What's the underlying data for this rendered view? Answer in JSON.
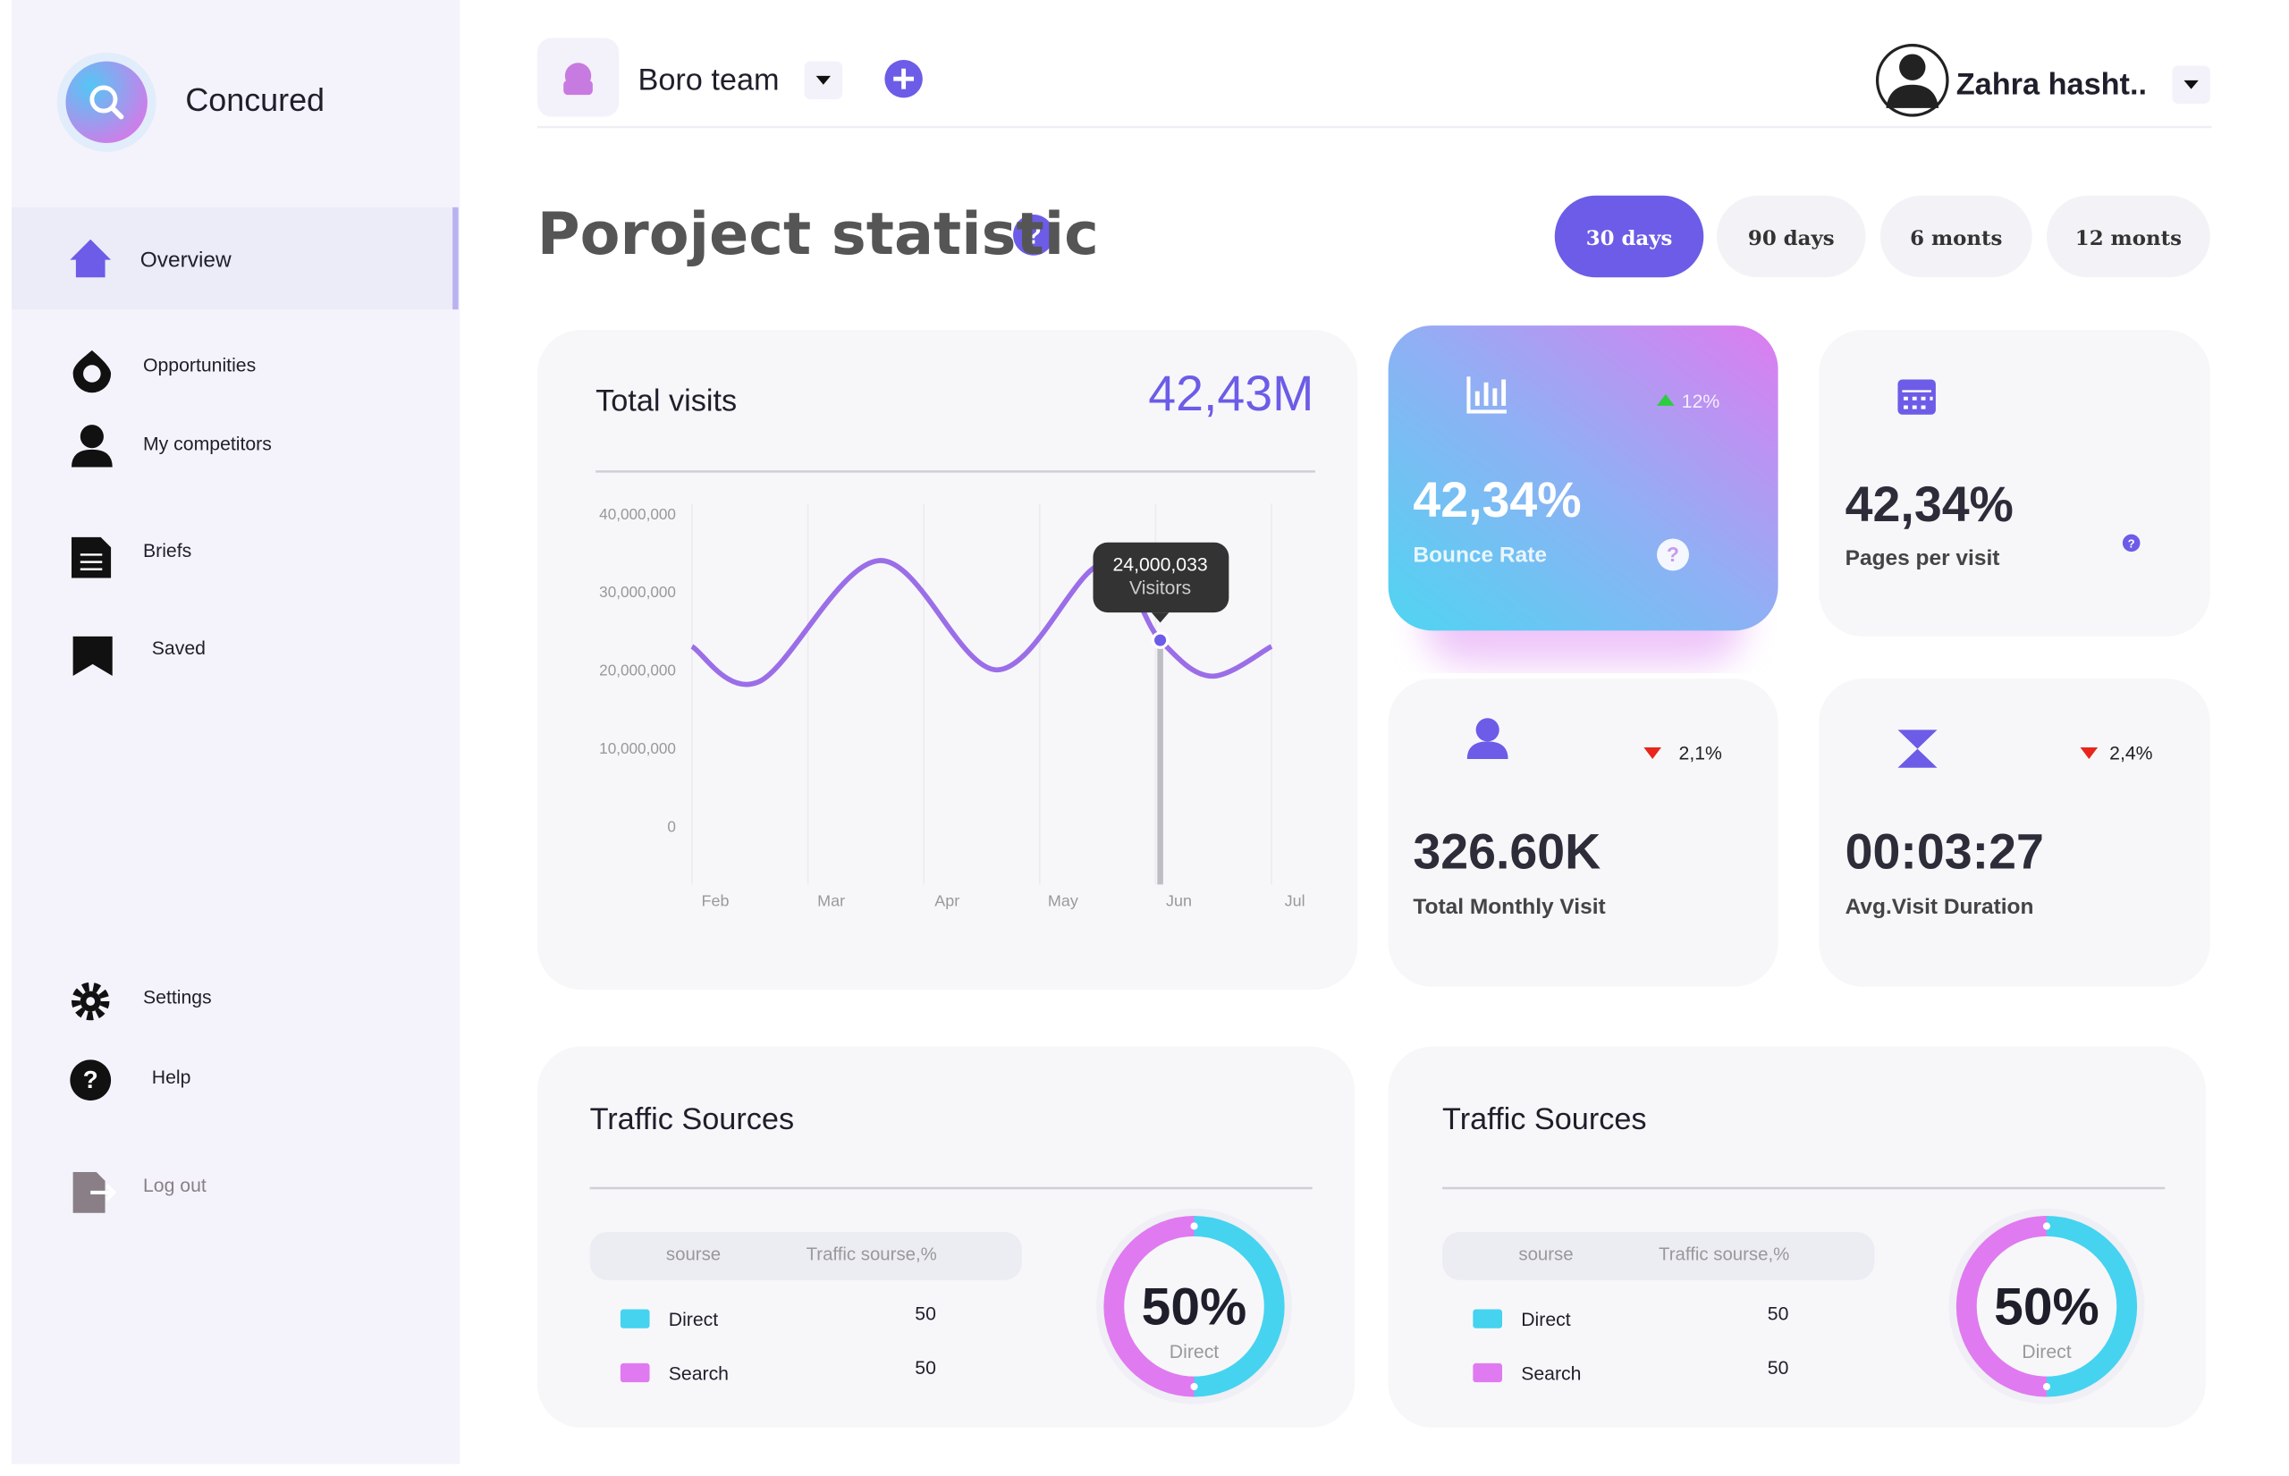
{
  "sidebar": {
    "brand": "Concured",
    "nav": [
      "Overview",
      "Opportunities",
      "My competitors",
      "Briefs",
      "Saved"
    ],
    "bottom_nav": [
      "Settings",
      "Help",
      "Log out"
    ]
  },
  "header": {
    "team": "Boro team",
    "user": "Zahra hasht.."
  },
  "page_title": "Poroject statistic",
  "periods": [
    "30 days",
    "90 days",
    "6 monts",
    "12 monts"
  ],
  "total_visits": {
    "title": "Total visits",
    "total": "42,43M",
    "chart": {
      "type": "line",
      "color": "#9b6ee8",
      "x": [
        0,
        0.58,
        1.62,
        2.63,
        3.54,
        4.04,
        4.48,
        5
      ],
      "values": [
        23200000,
        18700000,
        34200000,
        20200000,
        33800000,
        24000033,
        19400000,
        23200000
      ],
      "xlim": [
        0,
        5
      ],
      "xticks": [
        {
          "value": 0,
          "label": "Feb"
        },
        {
          "value": 1,
          "label": "Mar"
        },
        {
          "value": 2,
          "label": "Apr"
        },
        {
          "value": 3,
          "label": "May"
        },
        {
          "value": 4,
          "label": "Jun"
        },
        {
          "value": 5,
          "label": "Jul"
        }
      ],
      "ylim": [
        0,
        40000000
      ],
      "yticks": [
        0,
        {
          "value": 10000000,
          "label": "10,000,000"
        },
        {
          "value": 20000000,
          "label": "20,000,000"
        },
        {
          "value": 30000000,
          "label": "30,000,000"
        },
        {
          "value": 40000000,
          "label": "40,000,000"
        }
      ],
      "tooltip": {
        "value": "24,000,033",
        "label": "Visitors"
      }
    }
  },
  "stats": [
    {
      "value": "42,34%",
      "label": "Bounce Rate",
      "change": "12%"
    },
    {
      "value": "42,34%",
      "label": "Pages per visit"
    },
    {
      "value": "326.60K",
      "label": "Total Monthly Visit",
      "change": "2,1%"
    },
    {
      "value": "00:03:27",
      "label": "Avg.Visit Duration",
      "change": "2,4%"
    }
  ],
  "traffic_sources": [
    {
      "title": "Traffic Sources",
      "columns": [
        "sourse",
        "Traffic sourse,%"
      ],
      "rows": [
        [
          "Direct",
          50
        ],
        [
          "Search",
          50
        ]
      ],
      "donut_value": "50%",
      "donut_label": "Direct"
    },
    {
      "title": "Traffic Sources",
      "columns": [
        "sourse",
        "Traffic sourse,%"
      ],
      "rows": [
        [
          "Direct",
          50
        ],
        [
          "Search",
          50
        ]
      ],
      "donut_value": "50%",
      "donut_label": "Direct"
    }
  ]
}
